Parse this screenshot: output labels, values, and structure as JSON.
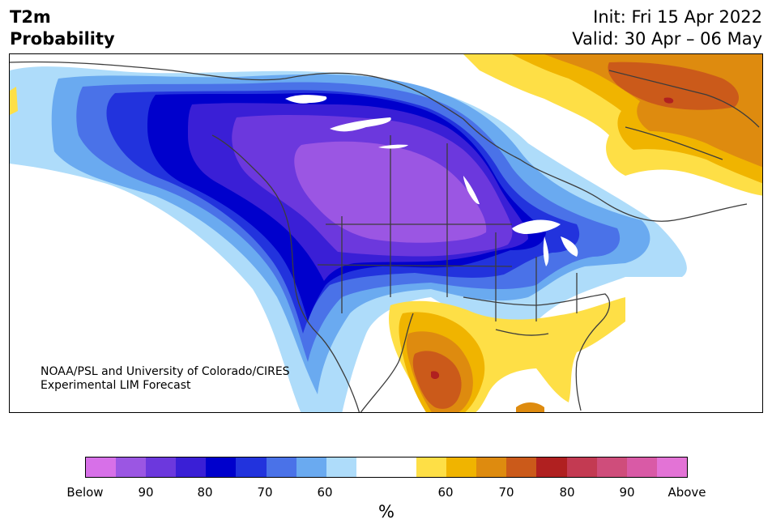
{
  "header": {
    "title_line1": "T2m",
    "title_line2": "Probability",
    "init_text": "Init: Fri 15 Apr 2022",
    "valid_text": "Valid: 30 Apr – 06 May"
  },
  "map": {
    "credit_line1": "NOAA/PSL and University of Colorado/CIRES",
    "credit_line2": "Experimental LIM Forecast",
    "colors": {
      "below_90plus": "#9b56e3",
      "below_80": "#6c38dd",
      "below_75": "#3a1fd6",
      "below_70": "#0000cc",
      "below_65": "#2233dd",
      "below_60": "#4a72e8",
      "below_55": "#6aaaf0",
      "below_50": "#aedcfa",
      "neutral": "#ffffff",
      "above_50": "#fedf46",
      "above_60": "#f0b400",
      "above_65": "#de8b0f",
      "above_70": "#cb5a1a",
      "above_75": "#b02020"
    }
  },
  "colorbar": {
    "unit_label": "%",
    "tick_labels": [
      "Below",
      "90",
      "80",
      "70",
      "60",
      "60",
      "70",
      "80",
      "90",
      "Above"
    ],
    "colors": [
      "#d770e8",
      "#9b56e3",
      "#6c38dd",
      "#3a1fd6",
      "#0000cc",
      "#2233dd",
      "#4a72e8",
      "#6aaaf0",
      "#aedcfa",
      "#ffffff",
      "#ffffff",
      "#fedf46",
      "#f0b400",
      "#de8b0f",
      "#cb5a1a",
      "#b02020",
      "#c33a52",
      "#cf4d7b",
      "#d95aa6",
      "#e373d6"
    ]
  }
}
